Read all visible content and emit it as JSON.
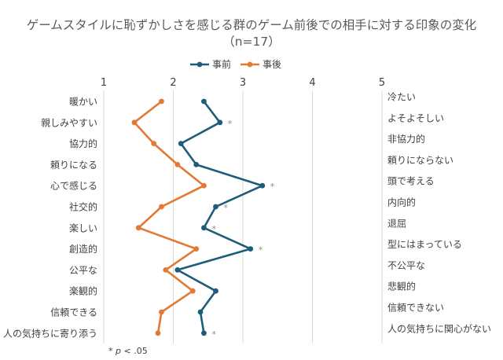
{
  "title_line1": "ゲームスタイルに恥ずかしさを感じる群のゲーム前後での相手に対する印象の変化",
  "title_line2": "（n=17）",
  "footnote": {
    "star": "*",
    "p": "p",
    "rest": " < .05"
  },
  "chart_data": {
    "type": "line",
    "orientation": "horizontal-profile",
    "xlim": [
      1,
      5
    ],
    "x_ticks": [
      "1",
      "2",
      "3",
      "4",
      "5"
    ],
    "grid": "vertical",
    "legend_position": "top",
    "left_labels": [
      "暖かい",
      "親しみやすい",
      "協力的",
      "頼りになる",
      "心で感じる",
      "社交的",
      "楽しい",
      "創造的",
      "公平な",
      "楽観的",
      "信頼できる",
      "人の気持ちに寄り添う"
    ],
    "right_labels": [
      "冷たい",
      "よそよそしい",
      "非協力的",
      "頼りにならない",
      "頭で考える",
      "内向的",
      "退屈",
      "型にはまっている",
      "不公平な",
      "悲観的",
      "信頼できない",
      "人の気持ちに関心がない"
    ],
    "significance_marker": "*",
    "significant": [
      false,
      true,
      false,
      false,
      true,
      true,
      true,
      true,
      false,
      false,
      false,
      true
    ],
    "series": [
      {
        "name": "事前",
        "color": "#1f5c7a",
        "values": [
          2.44,
          2.67,
          2.11,
          2.33,
          3.28,
          2.61,
          2.44,
          3.11,
          2.06,
          2.61,
          2.39,
          2.44
        ]
      },
      {
        "name": "事後",
        "color": "#e07a35",
        "values": [
          1.83,
          1.44,
          1.72,
          2.06,
          2.44,
          1.83,
          1.5,
          2.33,
          1.89,
          2.28,
          1.83,
          1.78
        ]
      }
    ]
  }
}
